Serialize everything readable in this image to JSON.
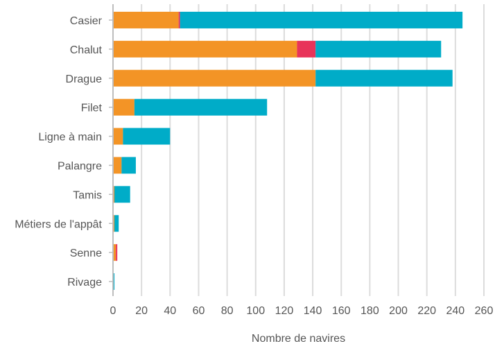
{
  "chart_data": {
    "type": "bar",
    "orientation": "horizontal",
    "stacked": true,
    "categories": [
      "Casier",
      "Chalut",
      "Drague",
      "Filet",
      "Ligne à main",
      "Palangre",
      "Tamis",
      "Métiers de l'appât",
      "Senne",
      "Rivage"
    ],
    "series": [
      {
        "values": [
          46,
          129,
          142,
          15,
          7,
          6,
          1,
          1,
          2,
          0
        ],
        "color": "#f39426"
      },
      {
        "values": [
          1,
          13,
          0,
          0,
          0,
          0,
          0,
          0,
          1,
          0
        ],
        "color": "#e8345a"
      },
      {
        "values": [
          198,
          88,
          96,
          93,
          33,
          10,
          11,
          3,
          0,
          1
        ],
        "color": "#00acc8"
      }
    ],
    "xlabel": "Nombre de navires",
    "ylabel": "",
    "xlim": [
      0,
      260
    ],
    "xticks": [
      0,
      20,
      40,
      60,
      80,
      100,
      120,
      140,
      160,
      180,
      200,
      220,
      240,
      260
    ],
    "grid": "vertical",
    "legend": "none"
  }
}
